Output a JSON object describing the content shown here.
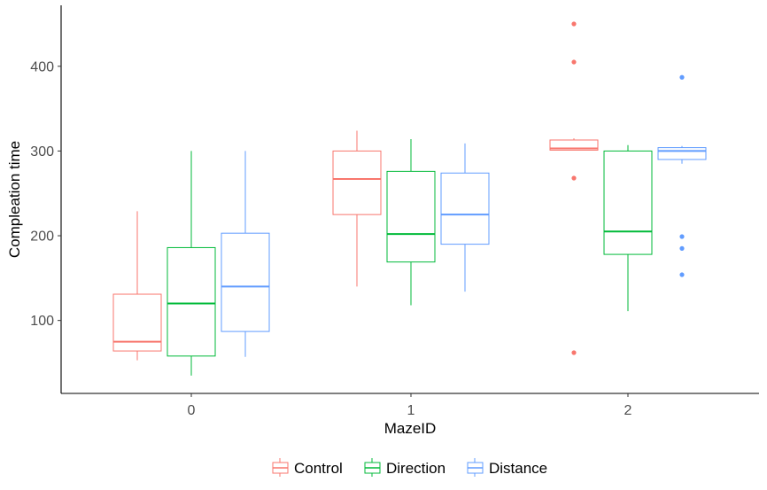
{
  "chart_data": {
    "type": "boxplot",
    "title": "",
    "xlabel": "MazeID",
    "ylabel": "Compleation time",
    "categories": [
      "0",
      "1",
      "2"
    ],
    "yticks": [
      100,
      200,
      300,
      400
    ],
    "ylim": [
      20,
      470
    ],
    "grid": false,
    "legend_position": "bottom",
    "series": [
      {
        "name": "Control",
        "color": "#F8766D",
        "boxes": [
          {
            "category": "0",
            "whisker_low": 53,
            "q1": 64,
            "median": 75,
            "q3": 131,
            "whisker_high": 229,
            "outliers": []
          },
          {
            "category": "1",
            "whisker_low": 140,
            "q1": 225,
            "median": 267,
            "q3": 300,
            "whisker_high": 324,
            "outliers": []
          },
          {
            "category": "2",
            "whisker_low": 301,
            "q1": 301,
            "median": 303,
            "q3": 313,
            "whisker_high": 315,
            "outliers": [
              450,
              405,
              268,
              62
            ]
          }
        ]
      },
      {
        "name": "Direction",
        "color": "#00BA38",
        "boxes": [
          {
            "category": "0",
            "whisker_low": 35,
            "q1": 58,
            "median": 120,
            "q3": 186,
            "whisker_high": 300,
            "outliers": []
          },
          {
            "category": "1",
            "whisker_low": 118,
            "q1": 169,
            "median": 202,
            "q3": 276,
            "whisker_high": 314,
            "outliers": []
          },
          {
            "category": "2",
            "whisker_low": 111,
            "q1": 178,
            "median": 205,
            "q3": 300,
            "whisker_high": 307,
            "outliers": []
          }
        ]
      },
      {
        "name": "Distance",
        "color": "#619CFF",
        "boxes": [
          {
            "category": "0",
            "whisker_low": 57,
            "q1": 87,
            "median": 140,
            "q3": 203,
            "whisker_high": 300,
            "outliers": []
          },
          {
            "category": "1",
            "whisker_low": 134,
            "q1": 190,
            "median": 225,
            "q3": 274,
            "whisker_high": 309,
            "outliers": []
          },
          {
            "category": "2",
            "whisker_low": 285,
            "q1": 290,
            "median": 300,
            "q3": 304,
            "whisker_high": 306,
            "outliers": [
              387,
              199,
              185,
              154
            ]
          }
        ]
      }
    ]
  }
}
